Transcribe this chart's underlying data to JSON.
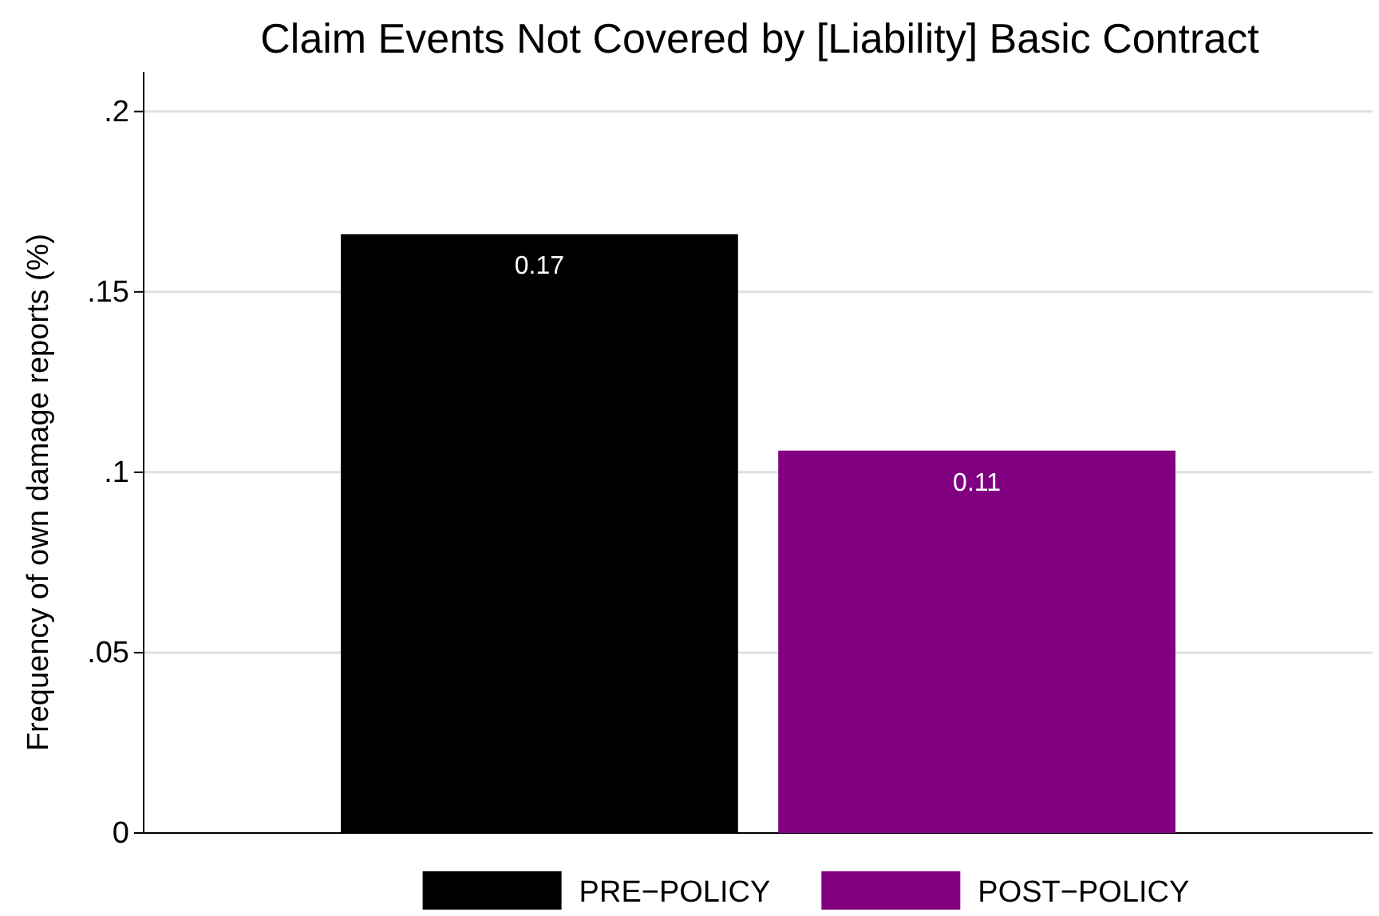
{
  "chart_data": {
    "type": "bar",
    "title": "Claim Events Not Covered by [Liability] Basic Contract",
    "ylabel": "Frequency of own damage reports (%)",
    "categories": [
      null
    ],
    "series": [
      {
        "name": "PRE−POLICY",
        "color": "#000000",
        "values": [
          0.166
        ],
        "value_labels": [
          "0.17"
        ]
      },
      {
        "name": "POST−POLICY",
        "color": "#800080",
        "values": [
          0.106
        ],
        "value_labels": [
          "0.11"
        ]
      }
    ],
    "ylim": [
      0,
      0.211
    ],
    "yticks": [
      0,
      {
        "value": 0.05,
        "label": ".05"
      },
      {
        "value": 0.1,
        "label": ".1"
      },
      {
        "value": 0.15,
        "label": ".15"
      },
      {
        "value": 0.2,
        "label": ".2"
      }
    ],
    "grid": "y",
    "legend": "bottom"
  }
}
